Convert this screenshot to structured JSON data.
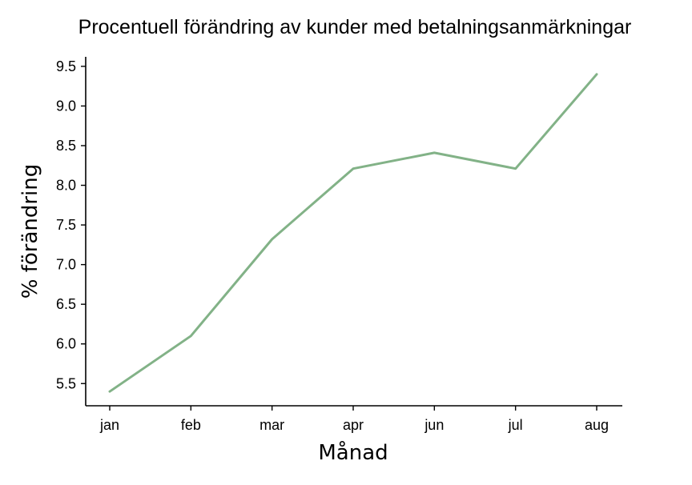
{
  "chart_data": {
    "type": "line",
    "title": "Procentuell förändring av kunder med betalningsanmärkningar",
    "xlabel": "Månad",
    "ylabel": "% förändring",
    "categories": [
      "jan",
      "feb",
      "mar",
      "apr",
      "jun",
      "jul",
      "aug"
    ],
    "series": [
      {
        "values": [
          5.4,
          6.1,
          7.32,
          8.21,
          8.41,
          8.21,
          9.4
        ]
      }
    ],
    "yticks": [
      "5.5",
      "6.0",
      "6.5",
      "7.0",
      "7.5",
      "8.0",
      "8.5",
      "9.0",
      "9.5"
    ],
    "ytick_values": [
      5.5,
      6.0,
      6.5,
      7.0,
      7.5,
      8.0,
      8.5,
      9.0,
      9.5
    ],
    "ylim": [
      5.22,
      9.62
    ],
    "grid": false,
    "line_color": "#82b287"
  }
}
